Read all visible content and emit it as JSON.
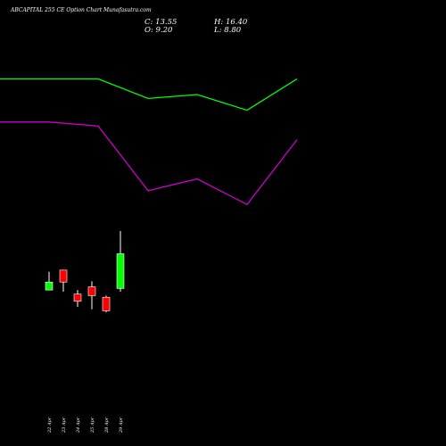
{
  "header": {
    "title": "ABCAPITAL 255 CE Option Chart Munafasutra.com",
    "close": "C: 13.55",
    "high": "H: 16.40",
    "open": "O: 9.20",
    "low": "L: 8.80"
  },
  "colors": {
    "background": "#000000",
    "up": "#00ff00",
    "down": "#ff0000",
    "upper_line": "#00ff00",
    "lower_line": "#cc00cc",
    "wick": "#ffffff"
  },
  "chart_data": {
    "type": "candlestick",
    "x": [
      "22 Apr",
      "23 Apr",
      "24 Apr",
      "25 Apr",
      "28 Apr",
      "29 Apr"
    ],
    "candles": [
      {
        "date": "22 Apr",
        "open": 9.0,
        "high": 11.3,
        "low": 9.0,
        "close": 10.0
      },
      {
        "date": "23 Apr",
        "open": 11.5,
        "high": 11.5,
        "low": 8.8,
        "close": 10.0
      },
      {
        "date": "24 Apr",
        "open": 8.5,
        "high": 9.0,
        "low": 6.9,
        "close": 7.6
      },
      {
        "date": "25 Apr",
        "open": 9.4,
        "high": 10.1,
        "low": 6.6,
        "close": 8.3
      },
      {
        "date": "28 Apr",
        "open": 8.1,
        "high": 8.3,
        "low": 6.2,
        "close": 6.4
      },
      {
        "date": "29 Apr",
        "open": 9.2,
        "high": 16.4,
        "low": 8.8,
        "close": 13.55
      }
    ],
    "series": [
      {
        "color": "#00ff00",
        "x": [
          "17 Apr",
          "22 Apr",
          "23 Apr",
          "24 Apr",
          "25 Apr",
          "28 Apr",
          "29 Apr"
        ],
        "values": [
          0.78,
          0.78,
          0.78,
          0.68,
          0.7,
          0.62,
          0.78
        ]
      },
      {
        "color": "#cc00cc",
        "x": [
          "17 Apr",
          "22 Apr",
          "23 Apr",
          "24 Apr",
          "25 Apr",
          "28 Apr",
          "29 Apr"
        ],
        "values": [
          0.56,
          0.56,
          0.54,
          0.21,
          0.27,
          0.14,
          0.47
        ]
      }
    ]
  }
}
